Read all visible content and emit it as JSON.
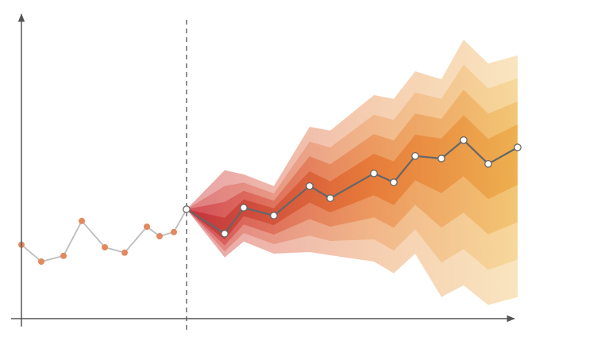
{
  "chart_data": {
    "type": "fan",
    "xlim": [
      0,
      64
    ],
    "ylim": [
      0,
      95
    ],
    "series": [
      {
        "x": [
          0,
          2.5,
          5.3,
          7.6,
          10.5,
          13,
          15.8,
          17.4,
          19.2,
          20.8
        ],
        "values": [
          23.3,
          18,
          19.8,
          30.8,
          22.5,
          20.8,
          29,
          26,
          27.3,
          34.5
        ],
        "color": "#bdbdbd",
        "marker_color": "#e3895f"
      },
      {
        "x": [
          20.8,
          25.6,
          28,
          31.8,
          36.3,
          38.9,
          44.4,
          46.9,
          49.6,
          52.9,
          55.7,
          58.8,
          62.5
        ],
        "values": [
          34.5,
          26.8,
          35,
          32.5,
          41.8,
          38,
          45.8,
          43,
          51.3,
          50.5,
          56.3,
          48.8,
          54
        ],
        "color": "#666666",
        "marker_color": "#ffffff"
      }
    ],
    "bands": [
      {
        "upper": [
          34.5,
          46.8,
          45.5,
          41.8,
          60.5,
          59.3,
          70.5,
          69.3,
          78,
          75.5,
          88,
          80.5,
          83
        ],
        "lower": [
          34.5,
          19.3,
          24.3,
          20.5,
          21,
          20,
          18,
          14.3,
          20.5,
          6.8,
          10.5,
          4.3,
          6.8
        ],
        "colors": [
          "#e9a3a6",
          "#f5cdb0",
          "#faeac2"
        ]
      },
      {
        "upper": [
          34.5,
          41.8,
          42.9,
          39.5,
          55.8,
          54,
          64.3,
          62.7,
          71.3,
          69.3,
          80.1,
          72.6,
          75.8
        ],
        "lower": [
          34.5,
          21.2,
          27,
          23.5,
          26.2,
          24.5,
          25,
          21.5,
          28.2,
          17.7,
          21.9,
          15.4,
          18.6
        ],
        "colors": [
          "#df7c80",
          "#f1b68a",
          "#f8df9e"
        ]
      },
      {
        "upper": [
          34.5,
          36.8,
          40.3,
          37.2,
          51.2,
          48.7,
          58.2,
          56.2,
          64.7,
          63,
          72.2,
          64.7,
          68.5
        ],
        "lower": [
          34.5,
          23.1,
          29.7,
          26.5,
          31.4,
          29,
          31.9,
          28.7,
          35.9,
          28.7,
          33.4,
          26.6,
          30.4
        ],
        "colors": [
          "#d4505a",
          "#ec9860",
          "#f4cf78"
        ]
      },
      {
        "upper": [
          34.5,
          31.8,
          37.6,
          34.8,
          46.5,
          43.3,
          52,
          49.6,
          58,
          56.8,
          64.2,
          56.7,
          61.3
        ],
        "lower": [
          34.5,
          24.9,
          32.3,
          29.5,
          36.6,
          33.5,
          38.9,
          35.8,
          43.6,
          39.6,
          44.9,
          37.7,
          42.2
        ],
        "colors": [
          "#c2333e",
          "#e77a3a",
          "#efbb55"
        ]
      }
    ]
  }
}
